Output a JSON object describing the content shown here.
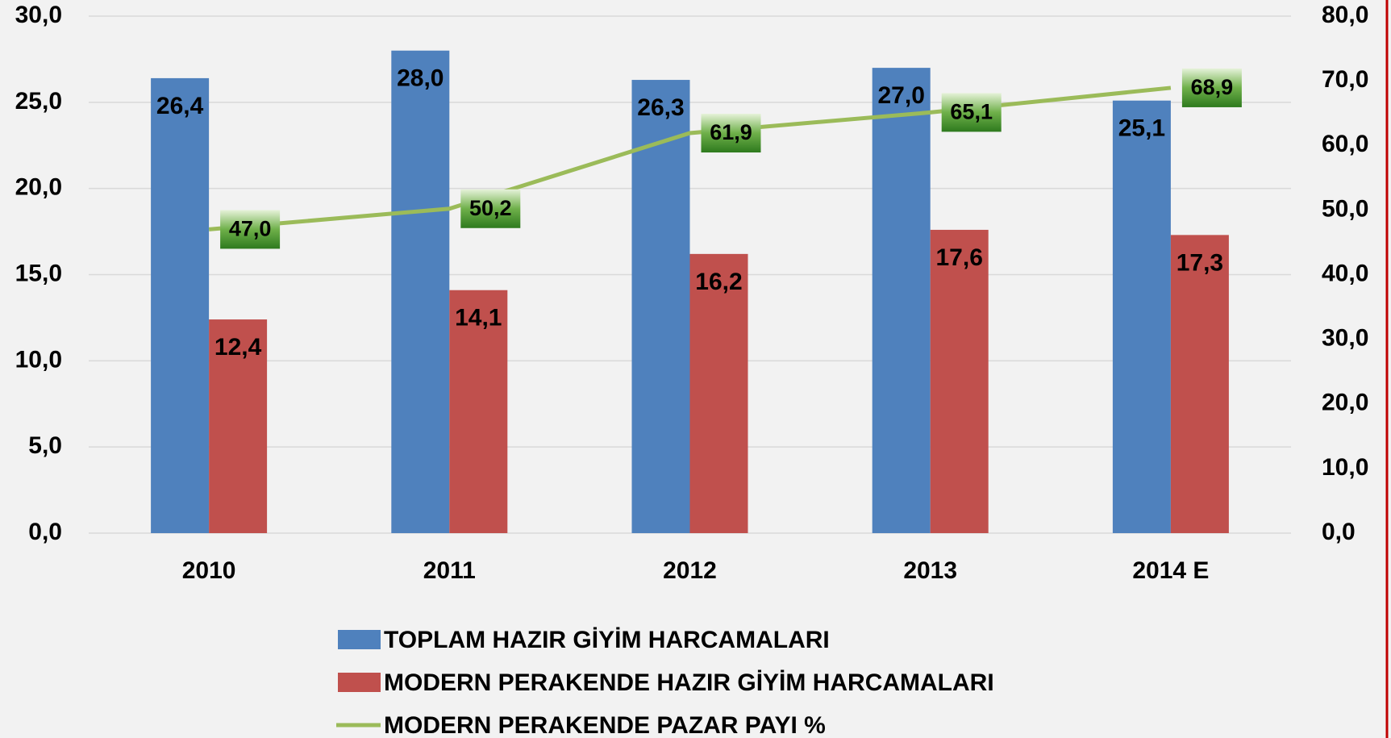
{
  "chart_data": {
    "type": "bar",
    "categories": [
      "2010",
      "2011",
      "2012",
      "2013",
      "2014 E"
    ],
    "series": [
      {
        "name": "TOPLAM HAZIR GİYİM HARCAMALARI",
        "color": "#4f81bd",
        "values": [
          26.4,
          28.0,
          26.3,
          27.0,
          25.1
        ],
        "value_labels": [
          "26,4",
          "28,0",
          "26,3",
          "27,0",
          "25,1"
        ]
      },
      {
        "name": "MODERN PERAKENDE HAZIR GİYİM HARCAMALARI",
        "color": "#c0504d",
        "values": [
          12.4,
          14.1,
          16.2,
          17.6,
          17.3
        ],
        "value_labels": [
          "12,4",
          "14,1",
          "16,2",
          "17,6",
          "17,3"
        ]
      },
      {
        "name": "MODERN PERAKENDE PAZAR PAYI %",
        "color": "#9bbb59",
        "type": "line",
        "axis": "y2",
        "values": [
          47.0,
          50.2,
          61.9,
          65.1,
          68.9
        ],
        "value_labels": [
          "47,0",
          "50,2",
          "61,9",
          "65,1",
          "68,9"
        ]
      }
    ],
    "ylim": [
      0,
      30
    ],
    "yticks": [
      {
        "value": 0,
        "label": "0,0"
      },
      {
        "value": 5,
        "label": "5,0"
      },
      {
        "value": 10,
        "label": "10,0"
      },
      {
        "value": 15,
        "label": "15,0"
      },
      {
        "value": 20,
        "label": "20,0"
      },
      {
        "value": 25,
        "label": "25,0"
      },
      {
        "value": 30,
        "label": "30,0"
      }
    ],
    "y2lim": [
      0,
      80
    ],
    "y2ticks": [
      {
        "value": 0,
        "label": "0,0"
      },
      {
        "value": 10,
        "label": "10,0"
      },
      {
        "value": 20,
        "label": "20,0"
      },
      {
        "value": 30,
        "label": "30,0"
      },
      {
        "value": 40,
        "label": "40,0"
      },
      {
        "value": 50,
        "label": "50,0"
      },
      {
        "value": 60,
        "label": "60,0"
      },
      {
        "value": 70,
        "label": "70,0"
      },
      {
        "value": 80,
        "label": "80,0"
      }
    ],
    "grid": true,
    "legend": "bottom"
  }
}
